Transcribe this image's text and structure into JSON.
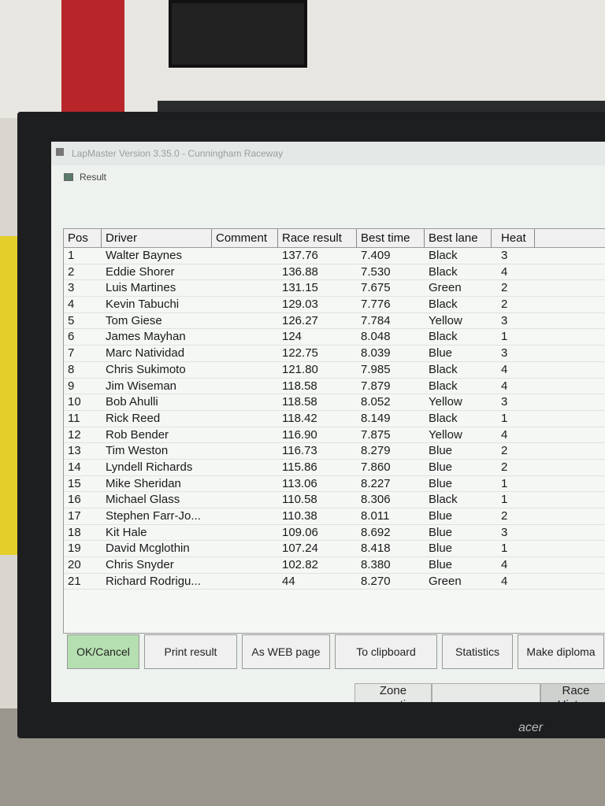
{
  "window": {
    "title": "LapMaster Version 3.35.0 - Cunningham Raceway",
    "subtitle": "Result"
  },
  "table": {
    "columns": [
      "Pos",
      "Driver",
      "Comment",
      "Race result",
      "Best time",
      "Best lane",
      "Heat"
    ],
    "rows": [
      [
        "1",
        "Walter Baynes",
        "",
        "137.76",
        "7.409",
        "Black",
        "3"
      ],
      [
        "2",
        "Eddie Shorer",
        "",
        "136.88",
        "7.530",
        "Black",
        "4"
      ],
      [
        "3",
        "Luis Martines",
        "",
        "131.15",
        "7.675",
        "Green",
        "2"
      ],
      [
        "4",
        "Kevin Tabuchi",
        "",
        "129.03",
        "7.776",
        "Black",
        "2"
      ],
      [
        "5",
        "Tom Giese",
        "",
        "126.27",
        "7.784",
        "Yellow",
        "3"
      ],
      [
        "6",
        "James Mayhan",
        "",
        "124",
        "8.048",
        "Black",
        "1"
      ],
      [
        "7",
        "Marc Natividad",
        "",
        "122.75",
        "8.039",
        "Blue",
        "3"
      ],
      [
        "8",
        "Chris Sukimoto",
        "",
        "121.80",
        "7.985",
        "Black",
        "4"
      ],
      [
        "9",
        "Jim Wiseman",
        "",
        "118.58",
        "7.879",
        "Black",
        "4"
      ],
      [
        "10",
        "Bob Ahulli",
        "",
        "118.58",
        "8.052",
        "Yellow",
        "3"
      ],
      [
        "11",
        "Rick Reed",
        "",
        "118.42",
        "8.149",
        "Black",
        "1"
      ],
      [
        "12",
        "Rob Bender",
        "",
        "116.90",
        "7.875",
        "Yellow",
        "4"
      ],
      [
        "13",
        "Tim Weston",
        "",
        "116.73",
        "8.279",
        "Blue",
        "2"
      ],
      [
        "14",
        "Lyndell Richards",
        "",
        "115.86",
        "7.860",
        "Blue",
        "2"
      ],
      [
        "15",
        "Mike Sheridan",
        "",
        "113.06",
        "8.227",
        "Blue",
        "1"
      ],
      [
        "16",
        "Michael Glass",
        "",
        "110.58",
        "8.306",
        "Black",
        "1"
      ],
      [
        "17",
        "Stephen Farr-Jo...",
        "",
        "110.38",
        "8.011",
        "Blue",
        "2"
      ],
      [
        "18",
        "Kit Hale",
        "",
        "109.06",
        "8.692",
        "Blue",
        "3"
      ],
      [
        "19",
        "David Mcglothin",
        "",
        "107.24",
        "8.418",
        "Blue",
        "1"
      ],
      [
        "20",
        "Chris Snyder",
        "",
        "102.82",
        "8.380",
        "Blue",
        "4"
      ],
      [
        "21",
        "Richard Rodrigu...",
        "",
        "44",
        "8.270",
        "Green",
        "4"
      ]
    ]
  },
  "buttons": [
    "OK/Cancel",
    "Print result",
    "As WEB page",
    "To clipboard",
    "Statistics",
    "Make diploma"
  ],
  "lower_buttons": {
    "zone": "Zone correction",
    "history": "Race History"
  },
  "monitor_brand": "acer",
  "colors": {
    "ok_button": "#b5dfb0"
  }
}
